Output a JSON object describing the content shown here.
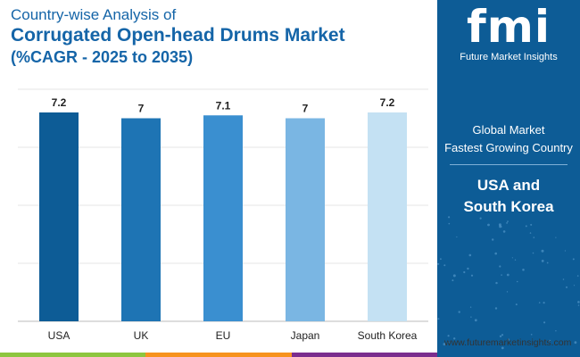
{
  "header": {
    "line1": "Country-wise Analysis of",
    "line2": "Corrugated Open-head Drums Market",
    "line3": "(%CAGR - 2025 to 2035)"
  },
  "chart_data": {
    "type": "bar",
    "categories": [
      "USA",
      "UK",
      "EU",
      "Japan",
      "South Korea"
    ],
    "values": [
      7.2,
      7,
      7.1,
      7,
      7.2
    ],
    "value_labels": [
      "7.2",
      "7",
      "7.1",
      "7",
      "7.2"
    ],
    "colors": [
      "#0d5c96",
      "#1e74b4",
      "#3a8fd0",
      "#7ab6e3",
      "#c4e1f3"
    ],
    "ylim": [
      0,
      8
    ],
    "grid": true,
    "title": "",
    "xlabel": "",
    "ylabel": ""
  },
  "sidebar": {
    "logo_text": "fmi",
    "logo_subtext": "Future Market Insights",
    "label_line1": "Global Market",
    "label_line2": "Fastest Growing Country",
    "value_line1": "USA and",
    "value_line2": "South Korea",
    "background": "#0d5c96"
  },
  "footer": {
    "url": "www.futuremarketinsights.com",
    "bar_colors": [
      "#8dc63f",
      "#f7931e",
      "#7b2d8e"
    ]
  }
}
